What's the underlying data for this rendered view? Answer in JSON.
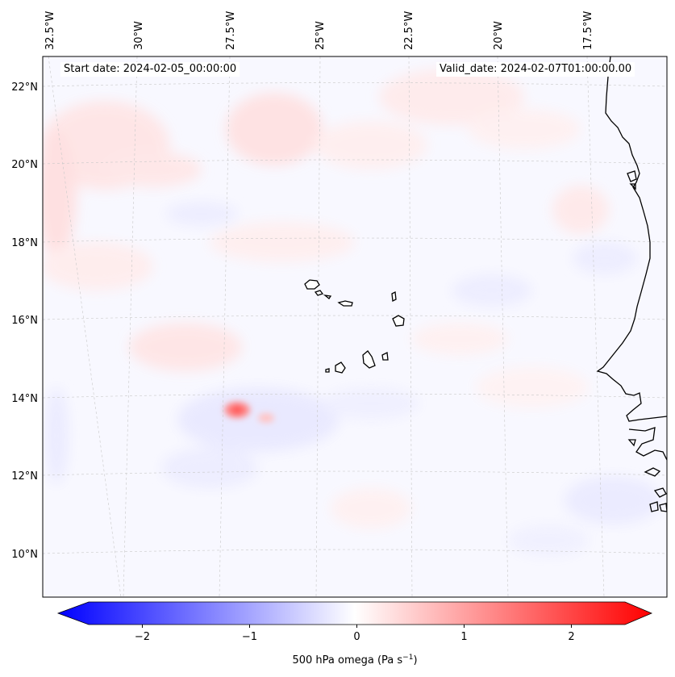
{
  "map": {
    "start_date_label": "Start date: 2024-02-05_00:00:00",
    "valid_date_label": "Valid_date: 2024-02-07T01:00:00.00",
    "lon_labels": [
      "32.5°W",
      "30°W",
      "27.5°W",
      "25°W",
      "22.5°W",
      "20°W",
      "17.5°W"
    ],
    "lat_labels": [
      "22°N",
      "20°N",
      "18°N",
      "16°N",
      "14°N",
      "12°N",
      "10°N"
    ],
    "extent": {
      "lon_min": -33.0,
      "lon_max": -15.0,
      "lat_min": 9.0,
      "lat_max": 22.8
    },
    "features": [
      "Cape Verde islands",
      "West African coastline"
    ]
  },
  "colorbar": {
    "label_text": "500 hPa omega (Pa s",
    "label_unit_sup": "−1",
    "label_close": ")",
    "tick_labels": [
      "−2",
      "−1",
      "0",
      "1",
      "2"
    ],
    "tick_values": [
      -2,
      -1,
      0,
      1,
      2
    ],
    "vmin": -2.5,
    "vmax": 2.5,
    "extend": "both",
    "cmap": "bwr",
    "colors": {
      "negative": "#0000ff",
      "zero": "#ffffff",
      "positive": "#ff0000"
    }
  }
}
